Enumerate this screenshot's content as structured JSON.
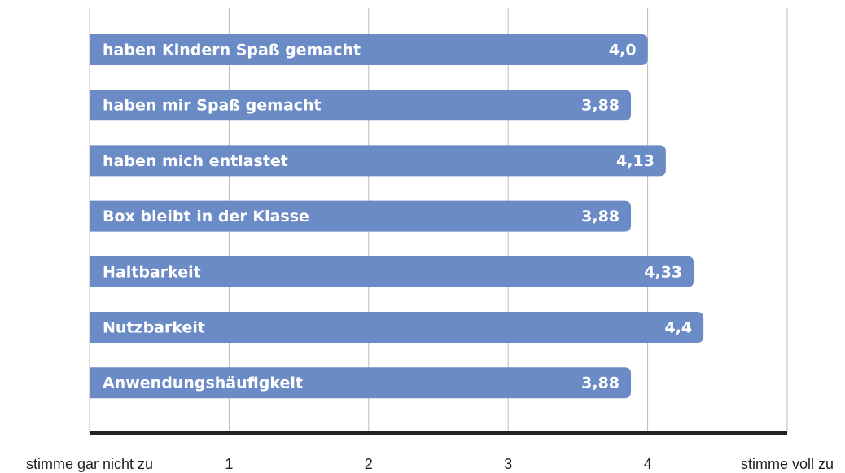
{
  "chart_data": {
    "type": "barh",
    "categories": [
      "haben Kindern Spaß gemacht",
      "haben mir Spaß gemacht",
      "haben mich entlastet",
      "Box bleibt in der Klasse",
      "Haltbarkeit",
      "Nutzbarkeit",
      "Anwendungshäufigkeit"
    ],
    "values": [
      4.0,
      3.88,
      4.13,
      3.88,
      4.33,
      4.4,
      3.88
    ],
    "value_labels": [
      "4,0",
      "3,88",
      "4,13",
      "3,88",
      "4,33",
      "4,4",
      "3,88"
    ],
    "color": "#6b8bc7",
    "xlim": [
      0,
      5
    ],
    "xticks": [
      {
        "value": 0,
        "label": "stimme gar nicht zu"
      },
      1,
      2,
      3,
      4,
      {
        "value": 5,
        "label": "stimme voll zu"
      }
    ],
    "grid": true
  }
}
